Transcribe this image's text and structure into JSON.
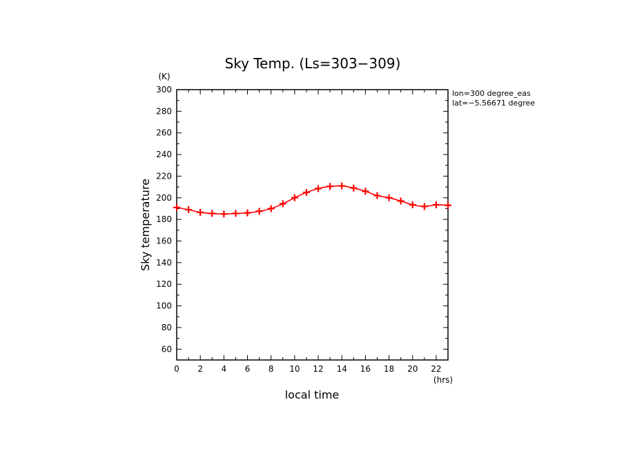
{
  "chart_data": {
    "type": "line",
    "title": "Sky Temp. (Ls=303−309)",
    "xlabel": "local time",
    "ylabel": "Sky temperature",
    "x_unit": "(hrs)",
    "y_unit": "(K)",
    "annotations": [
      "lon=300 degree_eas",
      "lat=−5.56671 degree"
    ],
    "xlim": [
      0,
      23
    ],
    "ylim": [
      50,
      300
    ],
    "x_ticks": [
      0,
      2,
      4,
      6,
      8,
      10,
      12,
      14,
      16,
      18,
      20,
      22
    ],
    "y_ticks": [
      60,
      80,
      100,
      120,
      140,
      160,
      180,
      200,
      220,
      240,
      260,
      280,
      300
    ],
    "grid": false,
    "series": [
      {
        "color": "#ff0000",
        "marker": "plus",
        "x": [
          0,
          1,
          2,
          3,
          4,
          5,
          6,
          7,
          8,
          9,
          10,
          11,
          12,
          13,
          14,
          15,
          16,
          17,
          18,
          19,
          20,
          21,
          22,
          23
        ],
        "values": [
          191,
          189,
          186.5,
          185.5,
          185,
          185.5,
          186,
          187.5,
          190,
          194.5,
          200,
          205,
          208.5,
          210.5,
          211,
          209,
          206,
          202,
          200,
          197,
          193.5,
          192,
          193.5,
          193
        ]
      }
    ]
  }
}
